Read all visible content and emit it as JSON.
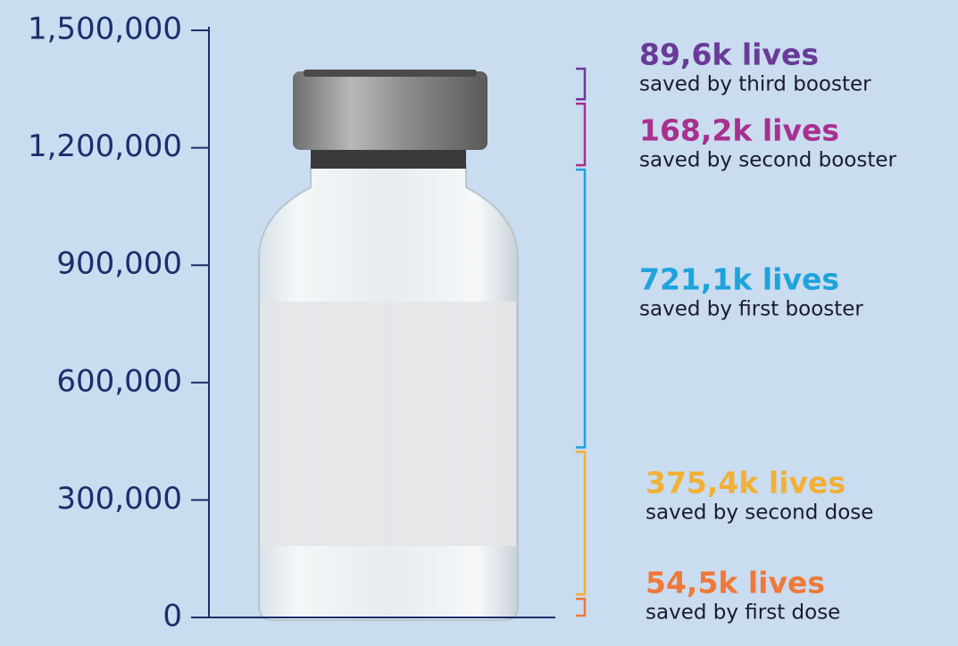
{
  "chart_data": {
    "type": "stacked-bracket",
    "ylim": [
      0,
      1500000
    ],
    "yticks": [
      0,
      {
        "value": 300000,
        "label": "300,000"
      },
      {
        "value": 600000,
        "label": "600,000"
      },
      {
        "value": 900000,
        "label": "900,000"
      },
      {
        "value": 1200000,
        "label": "1,200,000"
      },
      {
        "value": 1500000,
        "label": "1,500,000"
      }
    ],
    "series": [
      {
        "name": "saved by first dose",
        "color": "#f07838",
        "values": [
          54500
        ],
        "value_labels": [
          "54,5k lives"
        ]
      },
      {
        "name": "saved by second dose",
        "color": "#f2b035",
        "values": [
          375400
        ],
        "value_labels": [
          "375,4k lives"
        ]
      },
      {
        "name": "saved by first booster",
        "color": "#1ea3dc",
        "values": [
          721100
        ],
        "value_labels": [
          "721,1k lives"
        ]
      },
      {
        "name": "saved by second booster",
        "color": "#a8308f",
        "values": [
          168200
        ],
        "value_labels": [
          "168,2k lives"
        ]
      },
      {
        "name": "saved by third booster",
        "color": "#6a3a98",
        "values": [
          89600
        ],
        "value_labels": [
          "89,6k lives"
        ]
      }
    ]
  }
}
